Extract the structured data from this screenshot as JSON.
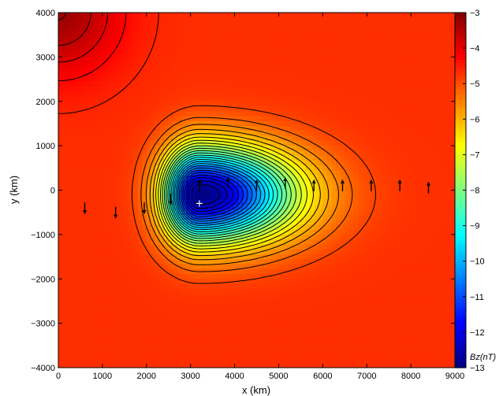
{
  "chart_data": {
    "type": "heatmap",
    "xlabel": "x (km)",
    "ylabel": "y (km)",
    "xlim": [
      0,
      9000
    ],
    "ylim": [
      -4000,
      4000
    ],
    "xticks": [
      "0",
      "1000",
      "2000",
      "3000",
      "4000",
      "5000",
      "6000",
      "7000",
      "8000",
      "9000"
    ],
    "yticks": [
      "−4000",
      "−3000",
      "−2000",
      "−1000",
      "0",
      "1000",
      "2000",
      "3000",
      "4000"
    ],
    "colorbar": {
      "label": "Bz(nT)",
      "range": [
        -13,
        -3
      ],
      "ticks": [
        "−3",
        "−4",
        "−5",
        "−6",
        "−7",
        "−8",
        "−9",
        "−10",
        "−11",
        "−12",
        "−13"
      ],
      "colormap": "jet"
    },
    "field": {
      "minimum": {
        "x": 3200,
        "y": -300,
        "value": -13
      },
      "background_value": -4.7,
      "upper_left_value": -3.3
    },
    "marker": {
      "x": 3200,
      "y": -300,
      "symbol": "+"
    },
    "grid": false,
    "contour_lines": true,
    "arrows": [
      {
        "x": 600,
        "y": -400,
        "dir": "down"
      },
      {
        "x": 1300,
        "y": -500,
        "dir": "down"
      },
      {
        "x": 1950,
        "y": -400,
        "dir": "down"
      },
      {
        "x": 2550,
        "y": -200,
        "dir": "down"
      },
      {
        "x": 3200,
        "y": 100,
        "dir": "up"
      },
      {
        "x": 3850,
        "y": 150,
        "dir": "up"
      },
      {
        "x": 4500,
        "y": 100,
        "dir": "up"
      },
      {
        "x": 5150,
        "y": 150,
        "dir": "up"
      },
      {
        "x": 5800,
        "y": 100,
        "dir": "up"
      },
      {
        "x": 6450,
        "y": 100,
        "dir": "up"
      },
      {
        "x": 7100,
        "y": 100,
        "dir": "up"
      },
      {
        "x": 7750,
        "y": 100,
        "dir": "up"
      },
      {
        "x": 8400,
        "y": 50,
        "dir": "up"
      }
    ]
  }
}
